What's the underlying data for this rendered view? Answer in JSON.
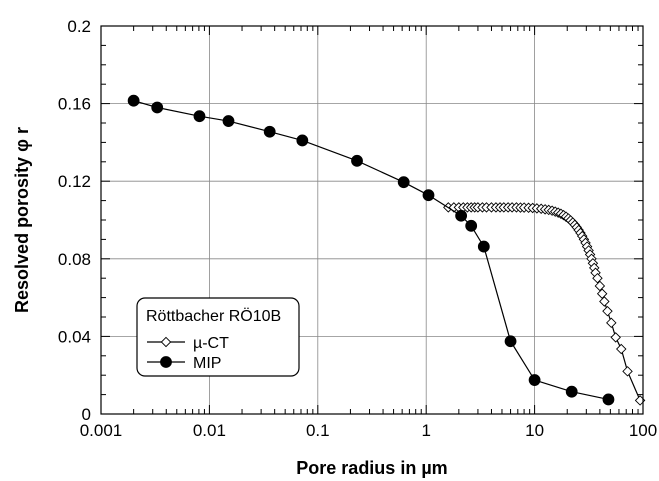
{
  "chart_data": {
    "type": "line",
    "xlabel": "Pore radius in µm",
    "ylabel": "Resolved porosity φ r",
    "xscale": "log",
    "xlim": [
      0.001,
      100
    ],
    "ylim": [
      0,
      0.2
    ],
    "x_ticks": [
      "0.001",
      "0.01",
      "0.1",
      "1",
      "10",
      "100"
    ],
    "y_ticks": [
      "0",
      "0.04",
      "0.08",
      "0.12",
      "0.16",
      "0.2"
    ],
    "grid": true,
    "legend": {
      "title": "Röttbacher RÖ10B",
      "position": "bottom-left"
    },
    "series": [
      {
        "name": "µ-CT",
        "marker": "open-diamond",
        "x": [
          1.6,
          1.8,
          2.0,
          2.2,
          2.4,
          2.6,
          2.8,
          3.0,
          3.3,
          3.6,
          4.0,
          4.4,
          4.8,
          5.2,
          5.7,
          6.2,
          6.8,
          7.4,
          8.0,
          8.8,
          9.6,
          10.5,
          11.5,
          12.5,
          13.5,
          14.5,
          15.5,
          16.5,
          17.5,
          18.5,
          19.5,
          20.5,
          21.5,
          22.5,
          23.5,
          24.5,
          25.5,
          26.5,
          27.5,
          28.5,
          29.5,
          30.5,
          31.5,
          32.5,
          33.5,
          34.5,
          35.5,
          36.5,
          38,
          40,
          42,
          44,
          47,
          51,
          56,
          63,
          72,
          94
        ],
        "y": [
          0.1065,
          0.1065,
          0.1065,
          0.1065,
          0.1065,
          0.1065,
          0.1065,
          0.1065,
          0.1065,
          0.1065,
          0.1065,
          0.1065,
          0.1065,
          0.1065,
          0.1065,
          0.1065,
          0.1065,
          0.1064,
          0.1064,
          0.1063,
          0.1062,
          0.106,
          0.1058,
          0.1055,
          0.1052,
          0.1048,
          0.1043,
          0.1038,
          0.1032,
          0.1025,
          0.1017,
          0.1008,
          0.0998,
          0.0987,
          0.0975,
          0.0962,
          0.0948,
          0.0933,
          0.0917,
          0.09,
          0.0882,
          0.0863,
          0.0843,
          0.0822,
          0.08,
          0.0777,
          0.0753,
          0.0728,
          0.07,
          0.066,
          0.062,
          0.058,
          0.053,
          0.047,
          0.0395,
          0.0335,
          0.022,
          0.007
        ]
      },
      {
        "name": "MIP",
        "marker": "filled-circle",
        "x": [
          0.002,
          0.0033,
          0.0081,
          0.015,
          0.036,
          0.072,
          0.23,
          0.62,
          1.05,
          2.1,
          2.6,
          3.4,
          6.0,
          10.0,
          22.0,
          48.0
        ],
        "y": [
          0.1615,
          0.158,
          0.1535,
          0.151,
          0.1455,
          0.141,
          0.1305,
          0.1195,
          0.1128,
          0.1022,
          0.097,
          0.0863,
          0.0375,
          0.0175,
          0.0115,
          0.0075
        ]
      }
    ]
  }
}
